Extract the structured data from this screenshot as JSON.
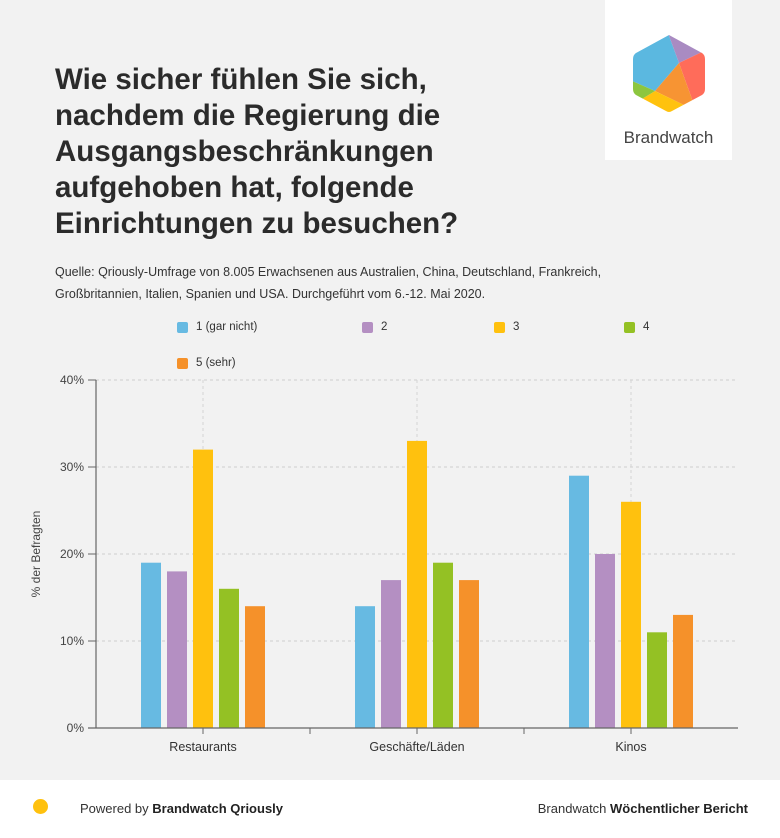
{
  "header": {
    "title": "Wie sicher fühlen Sie sich, nachdem die Regierung die Ausgangsbeschränkungen aufgehoben hat, folgende Einrichtungen zu besuchen?",
    "source": "Quelle: Qriously-Umfrage von 8.005 Erwachsenen aus Australien, China, Deutschland, Frankreich, Großbritannien, Italien, Spanien und USA. Durchgeführt vom 6.-12. Mai 2020."
  },
  "logo": {
    "text": "Brandwatch",
    "icon": "brandwatch-hexagon-logo",
    "colors": [
      "#5bb8e0",
      "#a98bc2",
      "#ff6c5a",
      "#f79433",
      "#ffc20e",
      "#8cc63f"
    ]
  },
  "chart_data": {
    "type": "bar",
    "title": "Wie sicher fühlen Sie sich, nachdem die Regierung die Ausgangsbeschränkungen aufgehoben hat, folgende Einrichtungen zu besuchen?",
    "xlabel": "",
    "ylabel": "% der Befragten",
    "ylim": [
      0,
      40
    ],
    "yticks": [
      0,
      10,
      20,
      30,
      40
    ],
    "ytick_labels": [
      "0%",
      "10%",
      "20%",
      "30%",
      "40%"
    ],
    "grid": true,
    "legend_position": "top",
    "categories": [
      "Restaurants",
      "Geschäfte/Läden",
      "Kinos"
    ],
    "series": [
      {
        "name": "1 (gar nicht)",
        "color": "#67bae2",
        "values": [
          19,
          14,
          29
        ]
      },
      {
        "name": "2",
        "color": "#b48fc2",
        "values": [
          18,
          17,
          20
        ]
      },
      {
        "name": "3",
        "color": "#ffc10e",
        "values": [
          32,
          33,
          26
        ]
      },
      {
        "name": "4",
        "color": "#94c124",
        "values": [
          16,
          19,
          11
        ]
      },
      {
        "name": "5 (sehr)",
        "color": "#f5912a",
        "values": [
          14,
          17,
          13
        ]
      }
    ]
  },
  "footer": {
    "powered_prefix": "Powered by ",
    "powered_brand": "Brandwatch Qriously",
    "right_prefix": "Brandwatch ",
    "right_bold": "Wöchentlicher Bericht",
    "dot_color": "#ffc10e"
  }
}
